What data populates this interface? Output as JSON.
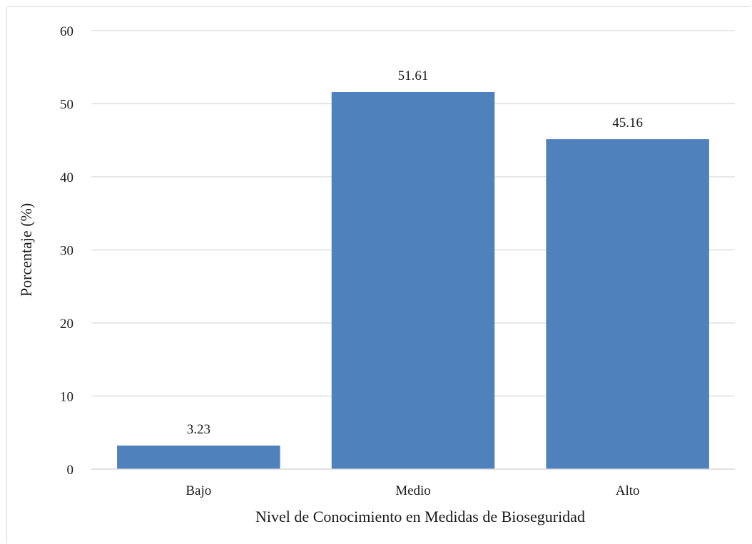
{
  "chart_data": {
    "type": "bar",
    "categories": [
      "Bajo",
      "Medio",
      "Alto"
    ],
    "values": [
      3.23,
      51.61,
      45.16
    ],
    "data_labels": [
      "3.23",
      "51.61",
      "45.16"
    ],
    "title": "",
    "xlabel": "Nivel de Conocimiento en Medidas de Bioseguridad",
    "ylabel": "Porcentaje (%)",
    "ylim": [
      0,
      60
    ],
    "yticks": [
      0,
      10,
      20,
      30,
      40,
      50,
      60
    ],
    "ytick_labels": [
      "0",
      "10",
      "20",
      "30",
      "40",
      "50",
      "60"
    ],
    "grid": "horizontal",
    "legend": "none",
    "bar_color": "#4f81bd",
    "grid_color": "#d9d9d9"
  }
}
